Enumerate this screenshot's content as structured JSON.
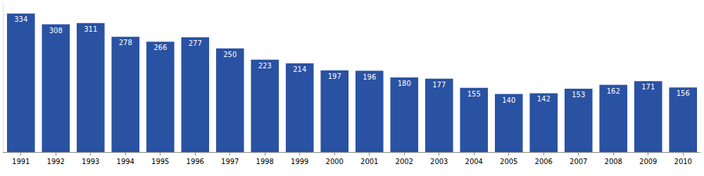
{
  "chart_data": {
    "type": "bar",
    "categories": [
      "1991",
      "1992",
      "1993",
      "1994",
      "1995",
      "1996",
      "1997",
      "1998",
      "1999",
      "2000",
      "2001",
      "2002",
      "2003",
      "2004",
      "2005",
      "2006",
      "2007",
      "2008",
      "2009",
      "2010"
    ],
    "values": [
      334,
      308,
      311,
      278,
      266,
      277,
      250,
      223,
      214,
      197,
      196,
      180,
      177,
      155,
      140,
      142,
      153,
      162,
      171,
      156
    ],
    "color": "#2a52a3",
    "ylim": [
      0,
      360
    ],
    "data_labels": true,
    "tick_labels": "x",
    "grid": false
  }
}
